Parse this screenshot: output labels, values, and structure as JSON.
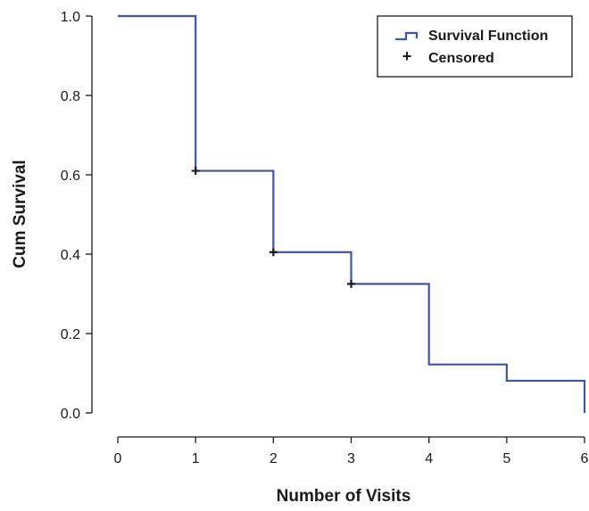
{
  "chart_data": {
    "type": "line",
    "subtype": "kaplan-meier-step",
    "xlabel": "Number of Visits",
    "ylabel": "Cum Survival",
    "xlim": [
      0,
      6
    ],
    "ylim": [
      0.0,
      1.0
    ],
    "x_ticks": [
      "0",
      "1",
      "2",
      "3",
      "4",
      "5",
      "6"
    ],
    "y_ticks": [
      "0.0",
      "0.2",
      "0.4",
      "0.6",
      "0.8",
      "1.0"
    ],
    "grid": false,
    "legend_position": "top-right",
    "legend": {
      "survival_label": "Survival Function",
      "censored_label": "Censored",
      "censored_symbol": "+"
    },
    "series": [
      {
        "name": "Survival Function",
        "color": "#3b55a8",
        "steps": [
          {
            "x": 0,
            "y": 1.0
          },
          {
            "x": 1,
            "y": 0.61
          },
          {
            "x": 2,
            "y": 0.405
          },
          {
            "x": 3,
            "y": 0.325
          },
          {
            "x": 4,
            "y": 0.122
          },
          {
            "x": 5,
            "y": 0.081
          },
          {
            "x": 6,
            "y": 0.0
          }
        ]
      }
    ],
    "censored_points": [
      {
        "x": 1,
        "y": 0.61
      },
      {
        "x": 2,
        "y": 0.405
      },
      {
        "x": 3,
        "y": 0.325
      }
    ]
  }
}
